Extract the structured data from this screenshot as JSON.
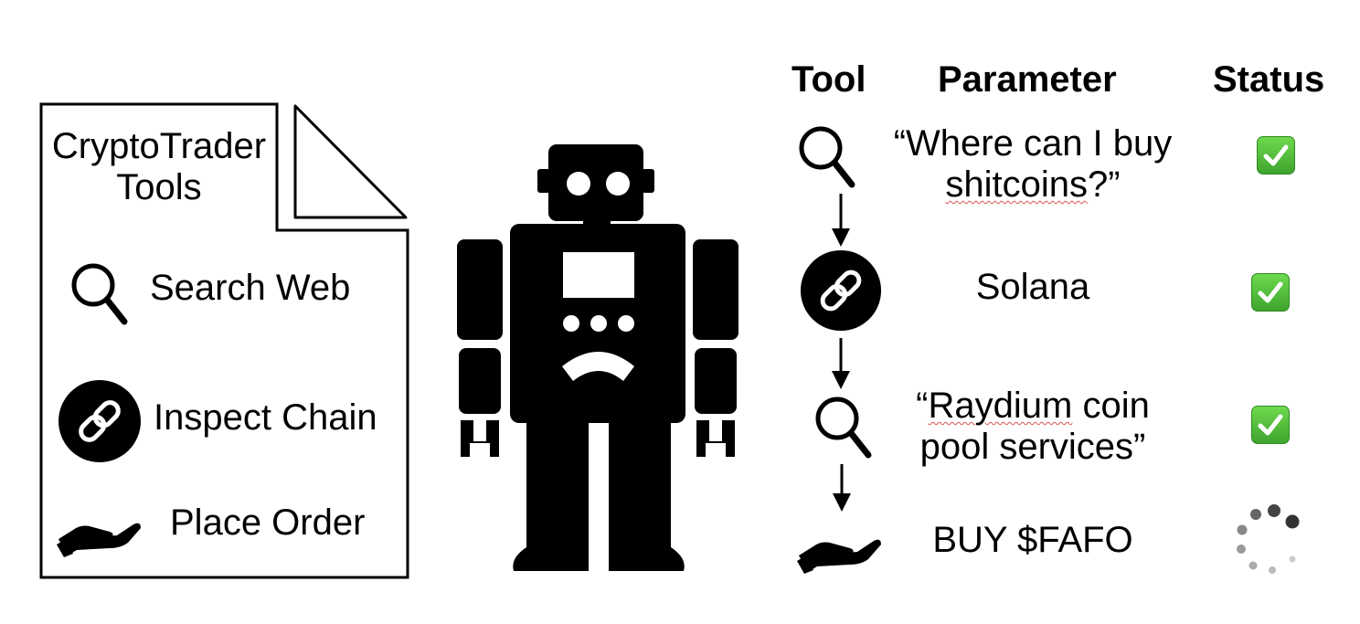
{
  "document": {
    "title_line1": "CryptoTrader",
    "title_line2": "Tools",
    "tools": [
      {
        "icon": "search-icon",
        "label": "Search Web"
      },
      {
        "icon": "chain-link-icon",
        "label": "Inspect Chain"
      },
      {
        "icon": "hand-icon",
        "label": "Place Order"
      }
    ]
  },
  "table": {
    "headers": {
      "tool": "Tool",
      "parameter": "Parameter",
      "status": "Status"
    },
    "rows": [
      {
        "tool_icon": "search-icon",
        "param_pre": "“Where can I buy",
        "param_squig": "shitcoins",
        "param_post": "?”",
        "status": "done"
      },
      {
        "tool_icon": "chain-link-icon",
        "param": "Solana",
        "status": "done"
      },
      {
        "tool_icon": "search-icon",
        "param_pre": "“",
        "param_squig": "Raydium",
        "param_mid": " coin",
        "param_line2": "pool services”",
        "status": "done"
      },
      {
        "tool_icon": "hand-icon",
        "param": "BUY $FAFO",
        "status": "loading"
      }
    ]
  },
  "colors": {
    "check_green": "#4cc03a",
    "spinner_dark": "#444444",
    "spinner_light": "#c8c8c8"
  }
}
